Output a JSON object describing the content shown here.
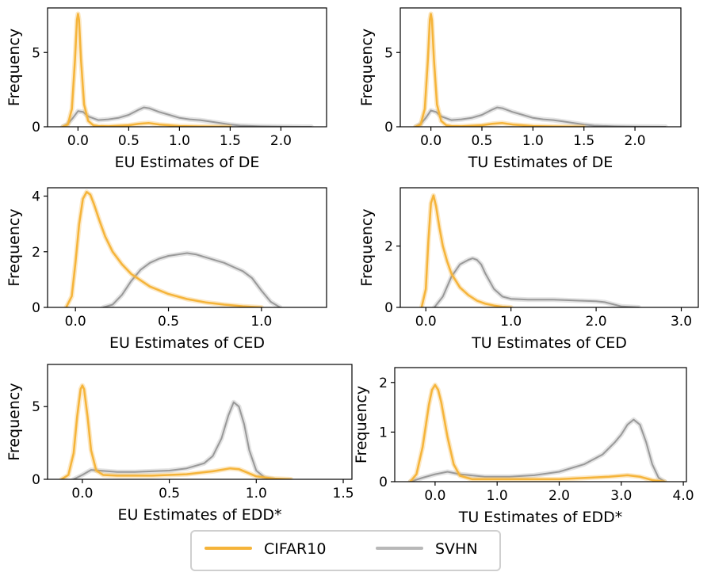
{
  "legend": {
    "entries": [
      {
        "label": "CIFAR10",
        "color": "#f5b43a"
      },
      {
        "label": "SVHN",
        "color": "#b8b8b8"
      }
    ]
  },
  "chart_data": [
    {
      "type": "line",
      "title": "",
      "xlabel": "EU Estimates of DE",
      "ylabel": "Frequency",
      "xlim": [
        -0.3,
        2.45
      ],
      "ylim": [
        0,
        8
      ],
      "xticks": [
        0.0,
        0.5,
        1.0,
        1.5,
        2.0
      ],
      "xtick_labels": [
        "0.0",
        "0.5",
        "1.0",
        "1.5",
        "2.0"
      ],
      "yticks": [
        0,
        5
      ],
      "ytick_labels": [
        "0",
        "5"
      ],
      "series": [
        {
          "name": "CIFAR10",
          "color": "#f5b43a",
          "x": [
            -0.15,
            -0.1,
            -0.06,
            -0.03,
            -0.01,
            0.0,
            0.01,
            0.03,
            0.06,
            0.1,
            0.15,
            0.2,
            0.3,
            0.5,
            0.6,
            0.7,
            0.8,
            1.0,
            1.2,
            1.5
          ],
          "y": [
            0.0,
            0.15,
            1.2,
            4.5,
            7.2,
            7.6,
            7.2,
            4.5,
            1.5,
            0.4,
            0.1,
            0.05,
            0.03,
            0.1,
            0.2,
            0.25,
            0.15,
            0.05,
            0.02,
            0.0
          ]
        },
        {
          "name": "SVHN",
          "color": "#808080",
          "x": [
            -0.15,
            -0.1,
            -0.05,
            0.0,
            0.05,
            0.1,
            0.2,
            0.3,
            0.4,
            0.5,
            0.6,
            0.65,
            0.7,
            0.8,
            0.9,
            1.0,
            1.1,
            1.2,
            1.3,
            1.4,
            1.5,
            1.6,
            1.8,
            2.0,
            2.3
          ],
          "y": [
            0.0,
            0.2,
            0.6,
            1.05,
            1.0,
            0.7,
            0.45,
            0.5,
            0.6,
            0.8,
            1.15,
            1.3,
            1.25,
            1.0,
            0.8,
            0.6,
            0.5,
            0.45,
            0.35,
            0.25,
            0.15,
            0.08,
            0.03,
            0.01,
            0.0
          ]
        }
      ]
    },
    {
      "type": "line",
      "title": "",
      "xlabel": "TU Estimates of DE",
      "ylabel": "Frequency",
      "xlim": [
        -0.3,
        2.45
      ],
      "ylim": [
        0,
        8
      ],
      "xticks": [
        0.0,
        0.5,
        1.0,
        1.5,
        2.0
      ],
      "xtick_labels": [
        "0.0",
        "0.5",
        "1.0",
        "1.5",
        "2.0"
      ],
      "yticks": [
        0,
        5
      ],
      "ytick_labels": [
        "0",
        "5"
      ],
      "series": [
        {
          "name": "CIFAR10",
          "color": "#f5b43a",
          "x": [
            -0.15,
            -0.1,
            -0.06,
            -0.03,
            -0.01,
            0.0,
            0.01,
            0.03,
            0.06,
            0.1,
            0.15,
            0.2,
            0.3,
            0.5,
            0.6,
            0.7,
            0.8,
            1.0,
            1.2,
            1.5
          ],
          "y": [
            0.0,
            0.15,
            1.2,
            4.5,
            7.2,
            7.6,
            7.2,
            4.5,
            1.5,
            0.4,
            0.1,
            0.05,
            0.03,
            0.1,
            0.2,
            0.25,
            0.15,
            0.05,
            0.02,
            0.0
          ]
        },
        {
          "name": "SVHN",
          "color": "#808080",
          "x": [
            -0.15,
            -0.1,
            -0.05,
            0.0,
            0.05,
            0.1,
            0.2,
            0.3,
            0.4,
            0.5,
            0.6,
            0.65,
            0.7,
            0.8,
            0.9,
            1.0,
            1.1,
            1.2,
            1.3,
            1.4,
            1.5,
            1.6,
            1.8,
            2.0,
            2.3
          ],
          "y": [
            0.0,
            0.2,
            0.6,
            1.1,
            1.0,
            0.7,
            0.45,
            0.5,
            0.6,
            0.8,
            1.15,
            1.3,
            1.25,
            1.0,
            0.8,
            0.6,
            0.5,
            0.45,
            0.35,
            0.25,
            0.15,
            0.08,
            0.03,
            0.01,
            0.0
          ]
        }
      ]
    },
    {
      "type": "line",
      "title": "",
      "xlabel": "EU Estimates of CED",
      "ylabel": "Frequency",
      "xlim": [
        -0.15,
        1.35
      ],
      "ylim": [
        0,
        4.3
      ],
      "xticks": [
        0.0,
        0.5,
        1.0
      ],
      "xtick_labels": [
        "0.0",
        "0.5",
        "1.0"
      ],
      "yticks": [
        0,
        2,
        4
      ],
      "ytick_labels": [
        "0",
        "2",
        "4"
      ],
      "series": [
        {
          "name": "CIFAR10",
          "color": "#f5b43a",
          "x": [
            -0.05,
            -0.02,
            0.0,
            0.02,
            0.04,
            0.06,
            0.08,
            0.1,
            0.13,
            0.16,
            0.2,
            0.25,
            0.3,
            0.4,
            0.5,
            0.6,
            0.7,
            0.8,
            0.9,
            1.0
          ],
          "y": [
            0.0,
            0.4,
            1.6,
            3.0,
            3.9,
            4.15,
            4.05,
            3.7,
            3.1,
            2.55,
            2.0,
            1.55,
            1.2,
            0.75,
            0.48,
            0.3,
            0.18,
            0.1,
            0.04,
            0.0
          ]
        },
        {
          "name": "SVHN",
          "color": "#808080",
          "x": [
            0.15,
            0.2,
            0.25,
            0.3,
            0.35,
            0.4,
            0.45,
            0.5,
            0.55,
            0.6,
            0.65,
            0.7,
            0.75,
            0.8,
            0.85,
            0.9,
            0.95,
            1.0,
            1.05,
            1.1
          ],
          "y": [
            0.0,
            0.1,
            0.45,
            0.95,
            1.35,
            1.6,
            1.75,
            1.85,
            1.9,
            1.95,
            1.9,
            1.8,
            1.7,
            1.6,
            1.45,
            1.3,
            1.05,
            0.6,
            0.2,
            0.0
          ]
        }
      ]
    },
    {
      "type": "line",
      "title": "",
      "xlabel": "TU Estimates of CED",
      "ylabel": "Frequency",
      "xlim": [
        -0.3,
        3.2
      ],
      "ylim": [
        0,
        3.9
      ],
      "xticks": [
        0.0,
        1.0,
        2.0,
        3.0
      ],
      "xtick_labels": [
        "0.0",
        "1.0",
        "2.0",
        "3.0"
      ],
      "yticks": [
        0,
        2
      ],
      "ytick_labels": [
        "0",
        "2"
      ],
      "series": [
        {
          "name": "CIFAR10",
          "color": "#f5b43a",
          "x": [
            -0.05,
            0.0,
            0.03,
            0.06,
            0.09,
            0.12,
            0.16,
            0.2,
            0.25,
            0.3,
            0.4,
            0.5,
            0.6,
            0.7,
            0.8,
            0.9,
            1.0
          ],
          "y": [
            0.0,
            0.6,
            2.2,
            3.4,
            3.65,
            3.3,
            2.6,
            2.0,
            1.5,
            1.1,
            0.65,
            0.4,
            0.22,
            0.12,
            0.06,
            0.02,
            0.0
          ]
        },
        {
          "name": "SVHN",
          "color": "#808080",
          "x": [
            0.1,
            0.2,
            0.3,
            0.4,
            0.5,
            0.55,
            0.6,
            0.65,
            0.7,
            0.8,
            0.9,
            1.0,
            1.2,
            1.5,
            1.8,
            2.0,
            2.1,
            2.2,
            2.3,
            2.5
          ],
          "y": [
            0.0,
            0.35,
            1.0,
            1.4,
            1.55,
            1.6,
            1.55,
            1.4,
            1.1,
            0.6,
            0.35,
            0.28,
            0.25,
            0.25,
            0.22,
            0.2,
            0.17,
            0.1,
            0.03,
            0.0
          ]
        }
      ]
    },
    {
      "type": "line",
      "title": "",
      "xlabel": "EU Estimates of EDD*",
      "ylabel": "Frequency",
      "xlim": [
        -0.2,
        1.55
      ],
      "ylim": [
        0,
        7.9
      ],
      "xticks": [
        0.0,
        0.5,
        1.0,
        1.5
      ],
      "xtick_labels": [
        "0.0",
        "0.5",
        "1.0",
        "1.5"
      ],
      "yticks": [
        0,
        5
      ],
      "ytick_labels": [
        "0",
        "5"
      ],
      "series": [
        {
          "name": "CIFAR10",
          "color": "#f5b43a",
          "x": [
            -0.12,
            -0.08,
            -0.05,
            -0.03,
            -0.01,
            0.0,
            0.01,
            0.03,
            0.05,
            0.08,
            0.12,
            0.2,
            0.4,
            0.6,
            0.75,
            0.85,
            0.9,
            0.95,
            1.0,
            1.1,
            1.2
          ],
          "y": [
            0.0,
            0.3,
            1.8,
            4.3,
            6.2,
            6.45,
            6.2,
            4.3,
            2.0,
            0.6,
            0.3,
            0.25,
            0.25,
            0.35,
            0.55,
            0.75,
            0.7,
            0.45,
            0.2,
            0.05,
            0.0
          ]
        },
        {
          "name": "SVHN",
          "color": "#808080",
          "x": [
            -0.05,
            0.0,
            0.05,
            0.1,
            0.2,
            0.3,
            0.4,
            0.5,
            0.6,
            0.7,
            0.75,
            0.8,
            0.84,
            0.87,
            0.9,
            0.93,
            0.96,
            1.0,
            1.05,
            1.1
          ],
          "y": [
            0.0,
            0.3,
            0.65,
            0.6,
            0.5,
            0.5,
            0.55,
            0.6,
            0.75,
            1.1,
            1.6,
            2.8,
            4.4,
            5.3,
            5.0,
            3.8,
            2.0,
            0.6,
            0.1,
            0.0
          ]
        }
      ]
    },
    {
      "type": "line",
      "title": "",
      "xlabel": "TU Estimates of EDD*",
      "ylabel": "Frequency",
      "xlim": [
        -0.65,
        4.05
      ],
      "ylim": [
        0,
        2.3
      ],
      "xticks": [
        0.0,
        1.0,
        2.0,
        3.0,
        4.0
      ],
      "xtick_labels": [
        "0.0",
        "1.0",
        "2.0",
        "3.0",
        "4.0"
      ],
      "yticks": [
        0,
        1,
        2
      ],
      "ytick_labels": [
        "0",
        "1",
        "2"
      ],
      "series": [
        {
          "name": "CIFAR10",
          "color": "#f5b43a",
          "x": [
            -0.4,
            -0.3,
            -0.2,
            -0.1,
            -0.05,
            0.0,
            0.05,
            0.1,
            0.2,
            0.3,
            0.4,
            0.6,
            1.0,
            2.0,
            2.8,
            3.1,
            3.3,
            3.5,
            3.7
          ],
          "y": [
            0.0,
            0.15,
            0.7,
            1.55,
            1.85,
            1.95,
            1.85,
            1.6,
            0.9,
            0.35,
            0.12,
            0.05,
            0.05,
            0.05,
            0.1,
            0.13,
            0.1,
            0.03,
            0.0
          ]
        },
        {
          "name": "SVHN",
          "color": "#808080",
          "x": [
            -0.4,
            -0.2,
            0.0,
            0.2,
            0.4,
            0.8,
            1.2,
            1.6,
            2.0,
            2.4,
            2.7,
            2.9,
            3.0,
            3.1,
            3.2,
            3.3,
            3.4,
            3.5,
            3.6,
            3.7
          ],
          "y": [
            0.0,
            0.08,
            0.15,
            0.2,
            0.15,
            0.1,
            0.1,
            0.13,
            0.2,
            0.35,
            0.55,
            0.8,
            0.95,
            1.15,
            1.25,
            1.15,
            0.8,
            0.35,
            0.08,
            0.0
          ]
        }
      ]
    }
  ]
}
